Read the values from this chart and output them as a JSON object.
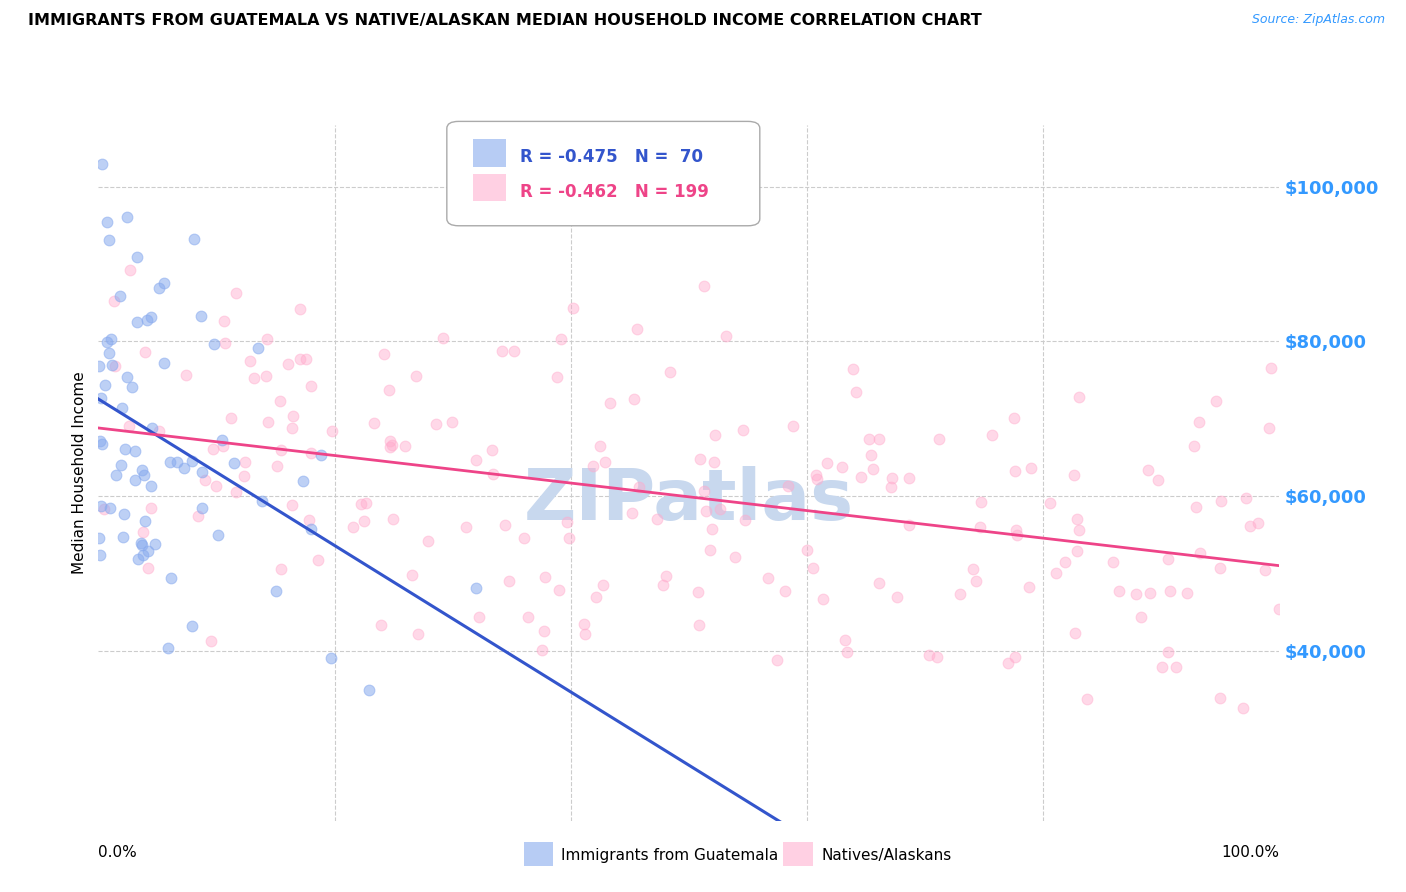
{
  "title": "IMMIGRANTS FROM GUATEMALA VS NATIVE/ALASKAN MEDIAN HOUSEHOLD INCOME CORRELATION CHART",
  "source": "Source: ZipAtlas.com",
  "ylabel": "Median Household Income",
  "right_ytick_values": [
    100000,
    80000,
    60000,
    40000
  ],
  "ylim": [
    18000,
    108000
  ],
  "xlim": [
    0.0,
    100.0
  ],
  "watermark": "ZIPatlas",
  "watermark_color": "#c8d8ee",
  "blue_R": -0.475,
  "blue_N": 70,
  "pink_R": -0.462,
  "pink_N": 199,
  "blue_color": "#88aaee",
  "pink_color": "#ffaacc",
  "blue_line_color": "#3355cc",
  "pink_line_color": "#ee4488",
  "dash_color": "#bbbbbb",
  "title_fontsize": 11.5,
  "source_fontsize": 9,
  "grid_color": "#cccccc",
  "background_color": "#ffffff",
  "right_label_color": "#3399ff"
}
